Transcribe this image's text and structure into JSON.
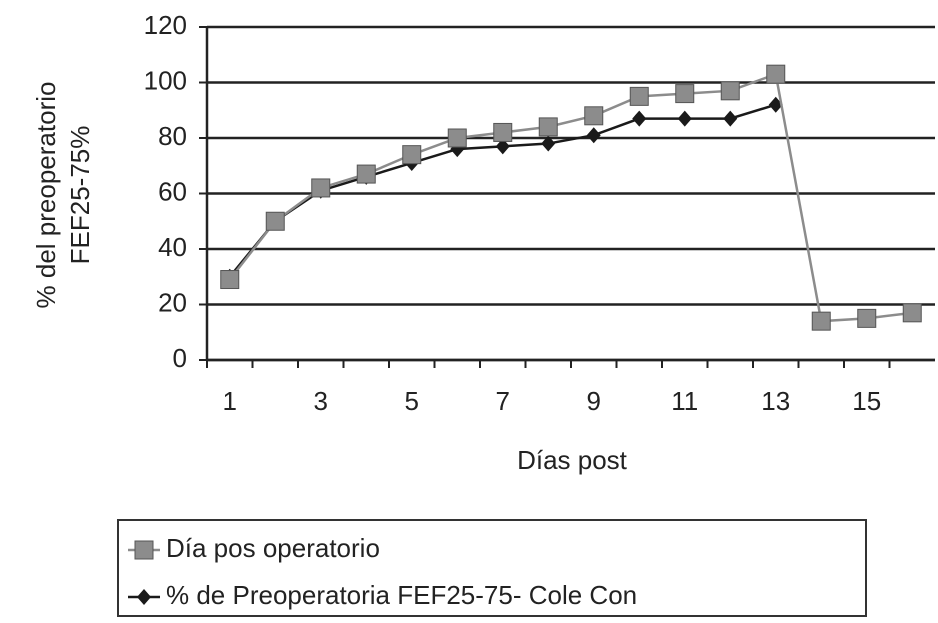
{
  "chart_data": {
    "type": "line",
    "xlabel": "Días post",
    "ylabel": [
      "% del preoperatorio",
      "FEF25-75%"
    ],
    "categories": [
      "1",
      null,
      "3",
      null,
      "5",
      null,
      "7",
      null,
      "9",
      null,
      "11",
      null,
      "13",
      null,
      "15",
      null
    ],
    "series": [
      {
        "name": "Día pos operatorio",
        "color": "#8c8c8c",
        "marker": "square",
        "values": [
          29,
          50,
          62,
          67,
          74,
          80,
          82,
          84,
          88,
          95,
          96,
          97,
          103,
          14,
          15,
          17
        ]
      },
      {
        "name": "% de  Preoperatoria  FEF25-75- Cole Con",
        "color": "#1a1a1a",
        "marker": "diamond",
        "values": [
          30,
          50,
          61,
          66,
          71,
          76,
          77,
          78,
          81,
          87,
          87,
          87,
          92,
          null,
          null,
          null
        ]
      }
    ],
    "ylim": [
      0,
      120
    ],
    "yticks": [
      0,
      20,
      40,
      60,
      80,
      100,
      120
    ],
    "grid": true
  }
}
